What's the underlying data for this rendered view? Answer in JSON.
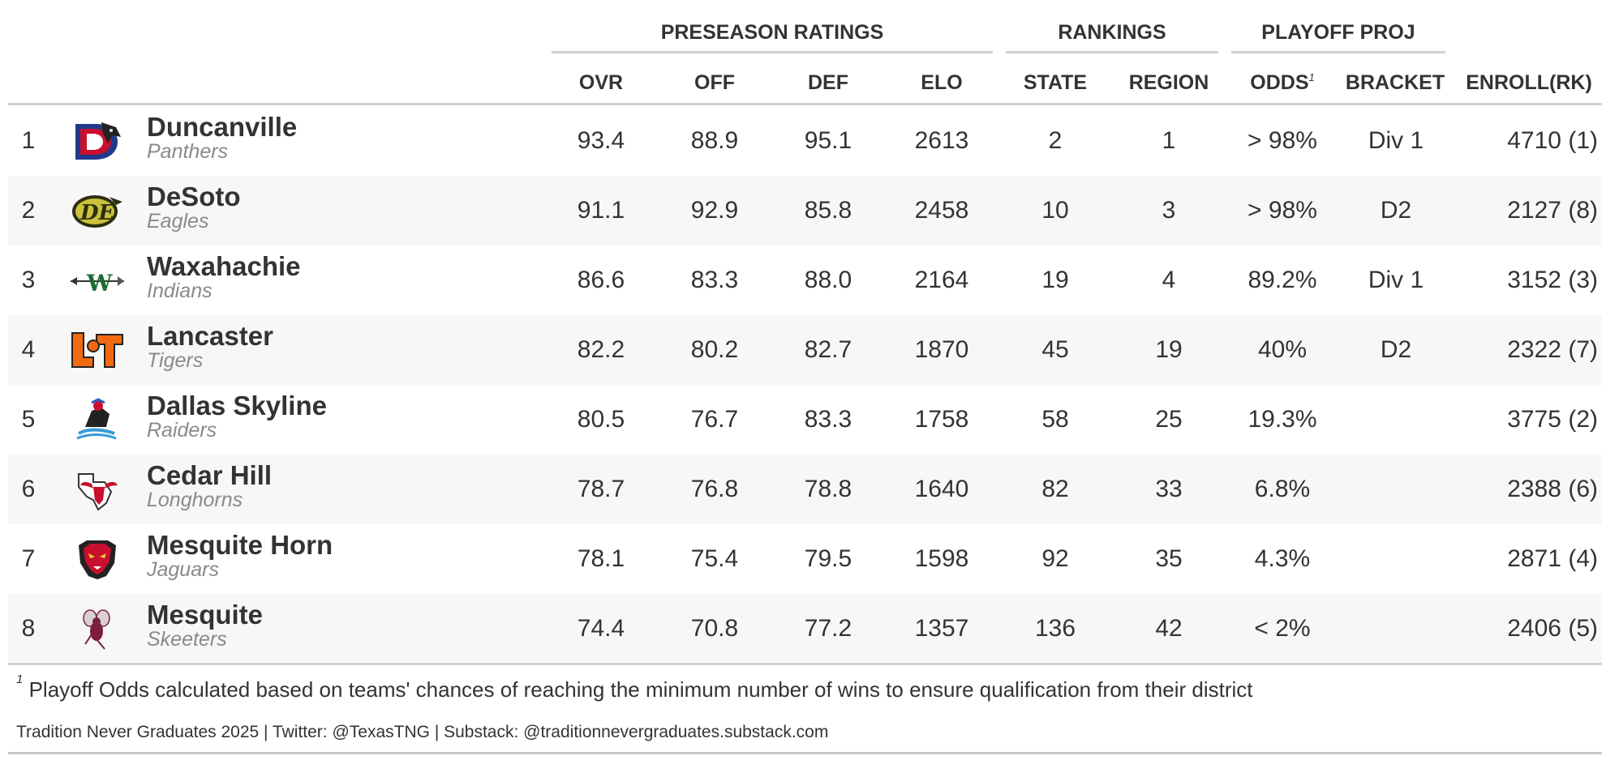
{
  "spanners": [
    "PRESEASON RATINGS",
    "RANKINGS",
    "PLAYOFF PROJ"
  ],
  "columns": {
    "ovr": "OVR",
    "off": "OFF",
    "def": "DEF",
    "elo": "ELO",
    "state": "STATE",
    "region": "REGION",
    "odds": "ODDS",
    "odds_mark": "1",
    "bracket": "BRACKET",
    "enroll": "ENROLL(RK)"
  },
  "colors": {
    "text": "#333333",
    "mascot": "#8a8a8a",
    "rule": "#d0d0d0",
    "alt_row": "#f7f7f7"
  },
  "teams": [
    {
      "rank": "1",
      "name": "Duncanville",
      "mascot": "Panthers",
      "logo": "duncanville-panther-logo-icon",
      "ovr": "93.4",
      "off": "88.9",
      "def": "95.1",
      "elo": "2613",
      "state": "2",
      "region": "1",
      "odds": "> 98%",
      "bracket": "Div 1",
      "enroll": "4710 (1)"
    },
    {
      "rank": "2",
      "name": "DeSoto",
      "mascot": "Eagles",
      "logo": "desoto-eagle-logo-icon",
      "ovr": "91.1",
      "off": "92.9",
      "def": "85.8",
      "elo": "2458",
      "state": "10",
      "region": "3",
      "odds": "> 98%",
      "bracket": "D2",
      "enroll": "2127 (8)"
    },
    {
      "rank": "3",
      "name": "Waxahachie",
      "mascot": "Indians",
      "logo": "waxahachie-arrow-logo-icon",
      "ovr": "86.6",
      "off": "83.3",
      "def": "88.0",
      "elo": "2164",
      "state": "19",
      "region": "4",
      "odds": "89.2%",
      "bracket": "Div 1",
      "enroll": "3152 (3)"
    },
    {
      "rank": "4",
      "name": "Lancaster",
      "mascot": "Tigers",
      "logo": "lancaster-lt-logo-icon",
      "ovr": "82.2",
      "off": "80.2",
      "def": "82.7",
      "elo": "1870",
      "state": "45",
      "region": "19",
      "odds": "40%",
      "bracket": "D2",
      "enroll": "2322 (7)"
    },
    {
      "rank": "5",
      "name": "Dallas Skyline",
      "mascot": "Raiders",
      "logo": "skyline-raider-logo-icon",
      "ovr": "80.5",
      "off": "76.7",
      "def": "83.3",
      "elo": "1758",
      "state": "58",
      "region": "25",
      "odds": "19.3%",
      "bracket": "",
      "enroll": "3775 (2)"
    },
    {
      "rank": "6",
      "name": "Cedar Hill",
      "mascot": "Longhorns",
      "logo": "cedar-hill-longhorn-logo-icon",
      "ovr": "78.7",
      "off": "76.8",
      "def": "78.8",
      "elo": "1640",
      "state": "82",
      "region": "33",
      "odds": "6.8%",
      "bracket": "",
      "enroll": "2388 (6)"
    },
    {
      "rank": "7",
      "name": "Mesquite Horn",
      "mascot": "Jaguars",
      "logo": "mesquite-horn-jaguar-logo-icon",
      "ovr": "78.1",
      "off": "75.4",
      "def": "79.5",
      "elo": "1598",
      "state": "92",
      "region": "35",
      "odds": "4.3%",
      "bracket": "",
      "enroll": "2871 (4)"
    },
    {
      "rank": "8",
      "name": "Mesquite",
      "mascot": "Skeeters",
      "logo": "mesquite-skeeter-logo-icon",
      "ovr": "74.4",
      "off": "70.8",
      "def": "77.2",
      "elo": "1357",
      "state": "136",
      "region": "42",
      "odds": "< 2%",
      "bracket": "",
      "enroll": "2406 (5)"
    }
  ],
  "footnote": {
    "mark": "1",
    "text": "Playoff Odds calculated based on teams' chances of reaching the minimum number of wins to ensure qualification from their district"
  },
  "source": "Tradition Never Graduates 2025 | Twitter: @TexasTNG | Substack: @traditionnevergraduates.substack.com"
}
